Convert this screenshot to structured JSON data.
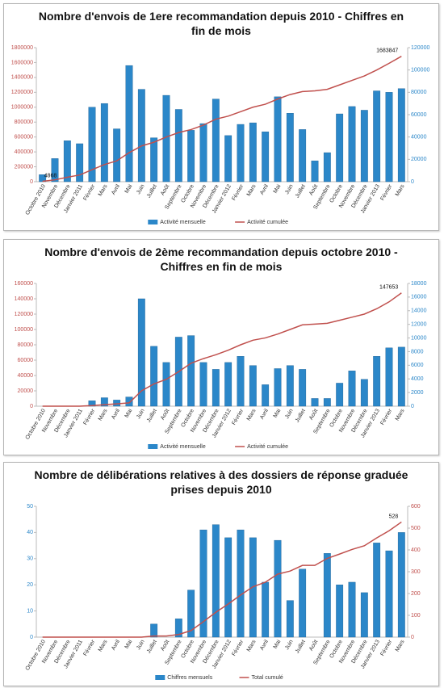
{
  "chart_data": [
    {
      "type": "combo",
      "title": "Nombre d'envois de 1ere recommandation depuis 2010 - Chiffres en fin de mois",
      "categories": [
        "Octobre 2010",
        "Novembre",
        "Décembre",
        "Janvier 2011",
        "Février",
        "Mars",
        "Avril",
        "Mai",
        "Juin",
        "Juillet",
        "Août",
        "Septembre",
        "Octobre",
        "Novembre",
        "Décembre",
        "Janvier 2012",
        "Février",
        "Mars",
        "Avril",
        "Mai",
        "Juin",
        "Juillet",
        "Août",
        "Septembre",
        "Octobre",
        "Novembre",
        "Décembre",
        "Janvier 2013",
        "Février",
        "Mars"
      ],
      "series": [
        {
          "name": "Activité mensuelle",
          "type": "bar",
          "axis": "y2",
          "color": "#2b87c9",
          "values": [
            6300,
            20700,
            36700,
            34000,
            66700,
            70000,
            47300,
            104000,
            82700,
            39300,
            77300,
            64700,
            46000,
            52000,
            74000,
            41300,
            51300,
            52700,
            44700,
            76000,
            61300,
            46700,
            18700,
            26000,
            60700,
            67300,
            64000,
            81300,
            80000,
            83300
          ]
        },
        {
          "name": "Activité cumulée",
          "type": "line",
          "color": "#c0504d",
          "labeled_points": [
            0,
            29
          ],
          "values": [
            4868,
            25000,
            60000,
            90000,
            160000,
            230000,
            280000,
            390000,
            480000,
            530000,
            600000,
            660000,
            700000,
            760000,
            840000,
            880000,
            940000,
            1000000,
            1040000,
            1110000,
            1170000,
            1210000,
            1220000,
            1240000,
            1300000,
            1360000,
            1420000,
            1500000,
            1590000,
            1683847
          ]
        }
      ],
      "ylim": [
        0,
        1800000
      ],
      "yticks": [
        0,
        200000,
        400000,
        600000,
        800000,
        1000000,
        1200000,
        1400000,
        1600000,
        1800000
      ],
      "y2lim": [
        0,
        120000
      ],
      "y2ticks": [
        0,
        20000,
        40000,
        60000,
        80000,
        100000,
        120000
      ],
      "legend": "bottom"
    },
    {
      "type": "combo",
      "title": "Nombre d'envois de 2ème recommandation depuis octobre 2010 - Chiffres en fin de mois",
      "categories": [
        "Octobre 2010",
        "Novembre",
        "Décembre",
        "Janvier 2011",
        "Février",
        "Mars",
        "Avril",
        "Mai",
        "Juin",
        "Juillet",
        "Août",
        "Septembre",
        "Octobre",
        "Novembre",
        "Décembre",
        "Janvier 2012",
        "Février",
        "Mars",
        "Avril",
        "Mai",
        "Juin",
        "Juillet",
        "Août",
        "Septembre",
        "Octobre",
        "Novembre",
        "Décembre",
        "Janvier 2013",
        "Février",
        "Mars"
      ],
      "series": [
        {
          "name": "Activité mensuelle",
          "type": "bar",
          "axis": "y2",
          "color": "#2b87c9",
          "values": [
            0,
            0,
            0,
            0,
            790,
            1240,
            900,
            1350,
            15750,
            8780,
            6410,
            10130,
            10350,
            6410,
            5400,
            6410,
            7310,
            5960,
            3150,
            5510,
            5960,
            5400,
            1130,
            1130,
            3380,
            5180,
            3940,
            7310,
            8550,
            8660
          ]
        },
        {
          "name": "Activité cumulée",
          "type": "line",
          "color": "#c0504d",
          "labeled_points": [
            29
          ],
          "values": [
            0,
            0,
            0,
            0,
            800,
            2000,
            3000,
            4300,
            20000,
            29000,
            35000,
            45000,
            56000,
            62000,
            67000,
            73000,
            80000,
            86000,
            89000,
            94000,
            100000,
            106000,
            107000,
            108000,
            112000,
            116000,
            120000,
            127000,
            136000,
            147653
          ]
        }
      ],
      "ylim": [
        0,
        160000
      ],
      "yticks": [
        0,
        20000,
        40000,
        60000,
        80000,
        100000,
        120000,
        140000,
        160000
      ],
      "y2lim": [
        0,
        18000
      ],
      "y2ticks": [
        0,
        2000,
        4000,
        6000,
        8000,
        10000,
        12000,
        14000,
        16000,
        18000
      ],
      "legend": "bottom"
    },
    {
      "type": "combo",
      "title": "Nombre de délibérations relatives à des dossiers de réponse graduée prises depuis 2010",
      "categories": [
        "Octobre 2010",
        "Novembre",
        "Décembre",
        "Janvier 2011",
        "Février",
        "Mars",
        "Avril",
        "Mai",
        "Juin",
        "Juillet",
        "Août",
        "Septembre",
        "Octobre",
        "Novembre",
        "Décembre",
        "Janvier 2012",
        "Février",
        "Mars",
        "Avril",
        "Mai",
        "Juin",
        "Juillet",
        "Août",
        "Septembre",
        "Octobre",
        "Novembre",
        "Décembre",
        "Janvier 2013",
        "Février",
        "Mars"
      ],
      "series": [
        {
          "name": "Chiffres mensuels",
          "type": "bar",
          "color": "#2b87c9",
          "values": [
            0,
            0,
            0,
            0,
            0,
            0,
            0,
            0,
            0,
            5,
            0,
            7,
            18,
            41,
            43,
            38,
            41,
            38,
            21,
            37,
            14,
            26,
            0,
            32,
            20,
            21,
            17,
            36,
            33,
            40
          ]
        },
        {
          "name": "Total cumulé",
          "type": "line",
          "axis": "y2",
          "color": "#c0504d",
          "labeled_points": [
            29
          ],
          "values": [
            0,
            0,
            0,
            0,
            0,
            0,
            0,
            0,
            0,
            5,
            5,
            12,
            30,
            71,
            114,
            152,
            193,
            231,
            252,
            289,
            303,
            329,
            329,
            361,
            381,
            402,
            419,
            455,
            488,
            528
          ]
        }
      ],
      "ylim": [
        0,
        50
      ],
      "yticks": [
        0,
        10,
        20,
        30,
        40,
        50
      ],
      "y2lim": [
        0,
        600
      ],
      "y2ticks": [
        0,
        100,
        200,
        300,
        400,
        500,
        600
      ],
      "legend": "bottom"
    }
  ]
}
